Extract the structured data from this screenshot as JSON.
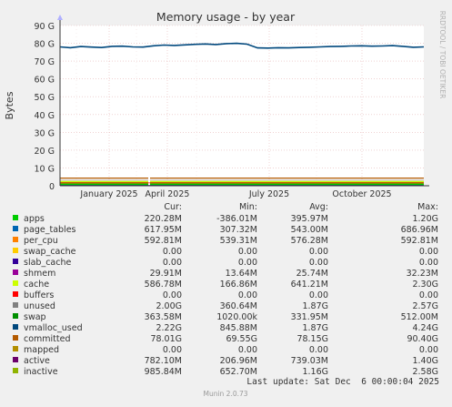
{
  "chart_data": {
    "type": "line",
    "title": "Memory usage - by year",
    "ylabel": "Bytes",
    "side_label": "RRDTOOL / TOBI OETIKER",
    "y_ticks": [
      "0",
      "10 G",
      "20 G",
      "30 G",
      "40 G",
      "50 G",
      "60 G",
      "70 G",
      "80 G",
      "90 G"
    ],
    "ylim": [
      0,
      90
    ],
    "y_unit": "G",
    "x_ticks": [
      "January 2025",
      "April 2025",
      "July 2025",
      "October 2025"
    ],
    "x_tick_fracs": [
      0.135,
      0.295,
      0.575,
      0.83
    ],
    "grid": true,
    "legend_position": "bottom",
    "columns": [
      "Cur:",
      "Min:",
      "Avg:",
      "Max:"
    ],
    "series": [
      {
        "name": "apps",
        "color": "#00cc00",
        "values": [
          "220.28M",
          "-386.01M",
          "395.97M",
          "1.20G"
        ]
      },
      {
        "name": "page_tables",
        "color": "#0066b3",
        "values": [
          "617.95M",
          "307.32M",
          "543.00M",
          "686.96M"
        ]
      },
      {
        "name": "per_cpu",
        "color": "#ff8000",
        "values": [
          "592.81M",
          "539.31M",
          "576.28M",
          "592.81M"
        ]
      },
      {
        "name": "swap_cache",
        "color": "#ffcc00",
        "values": [
          "0.00",
          "0.00",
          "0.00",
          "0.00"
        ]
      },
      {
        "name": "slab_cache",
        "color": "#330099",
        "values": [
          "0.00",
          "0.00",
          "0.00",
          "0.00"
        ]
      },
      {
        "name": "shmem",
        "color": "#990099",
        "values": [
          "29.91M",
          "13.64M",
          "25.74M",
          "32.23M"
        ]
      },
      {
        "name": "cache",
        "color": "#ccff00",
        "values": [
          "586.78M",
          "166.86M",
          "641.21M",
          "2.30G"
        ]
      },
      {
        "name": "buffers",
        "color": "#ff0000",
        "values": [
          "0.00",
          "0.00",
          "0.00",
          "0.00"
        ]
      },
      {
        "name": "unused",
        "color": "#808080",
        "values": [
          "2.00G",
          "360.64M",
          "1.87G",
          "2.57G"
        ]
      },
      {
        "name": "swap",
        "color": "#008f00",
        "values": [
          "363.58M",
          "1020.00k",
          "331.95M",
          "512.00M"
        ]
      },
      {
        "name": "vmalloc_used",
        "color": "#00487d",
        "values": [
          "2.22G",
          "845.88M",
          "1.87G",
          "4.24G"
        ]
      },
      {
        "name": "committed",
        "color": "#b35a00",
        "values": [
          "78.01G",
          "69.55G",
          "78.15G",
          "90.40G"
        ]
      },
      {
        "name": "mapped",
        "color": "#b38f00",
        "values": [
          "0.00",
          "0.00",
          "0.00",
          "0.00"
        ]
      },
      {
        "name": "active",
        "color": "#6b006b",
        "values": [
          "782.10M",
          "206.96M",
          "739.03M",
          "1.40G"
        ]
      },
      {
        "name": "inactive",
        "color": "#8fb300",
        "values": [
          "985.84M",
          "652.70M",
          "1.16G",
          "2.58G"
        ]
      }
    ],
    "committed_trend": [
      78.0,
      77.5,
      78.2,
      77.9,
      77.6,
      78.3,
      78.4,
      78.0,
      77.9,
      78.6,
      79.0,
      78.8,
      79.1,
      79.4,
      79.6,
      79.3,
      79.8,
      80.0,
      79.5,
      77.4,
      77.3,
      77.5,
      77.4,
      77.6,
      77.8,
      78.0,
      78.2,
      78.3,
      78.5,
      78.6,
      78.4,
      78.5,
      78.7,
      78.3,
      77.8,
      78.0
    ],
    "stack_levels": {
      "unused": 3.6,
      "cache": 2.7,
      "inactive": 2.1,
      "apps": 1.2
    },
    "gap_frac": 0.245,
    "last_update": "Last update: Sat Dec  6 00:00:04 2025",
    "footer": "Munin 2.0.73"
  }
}
